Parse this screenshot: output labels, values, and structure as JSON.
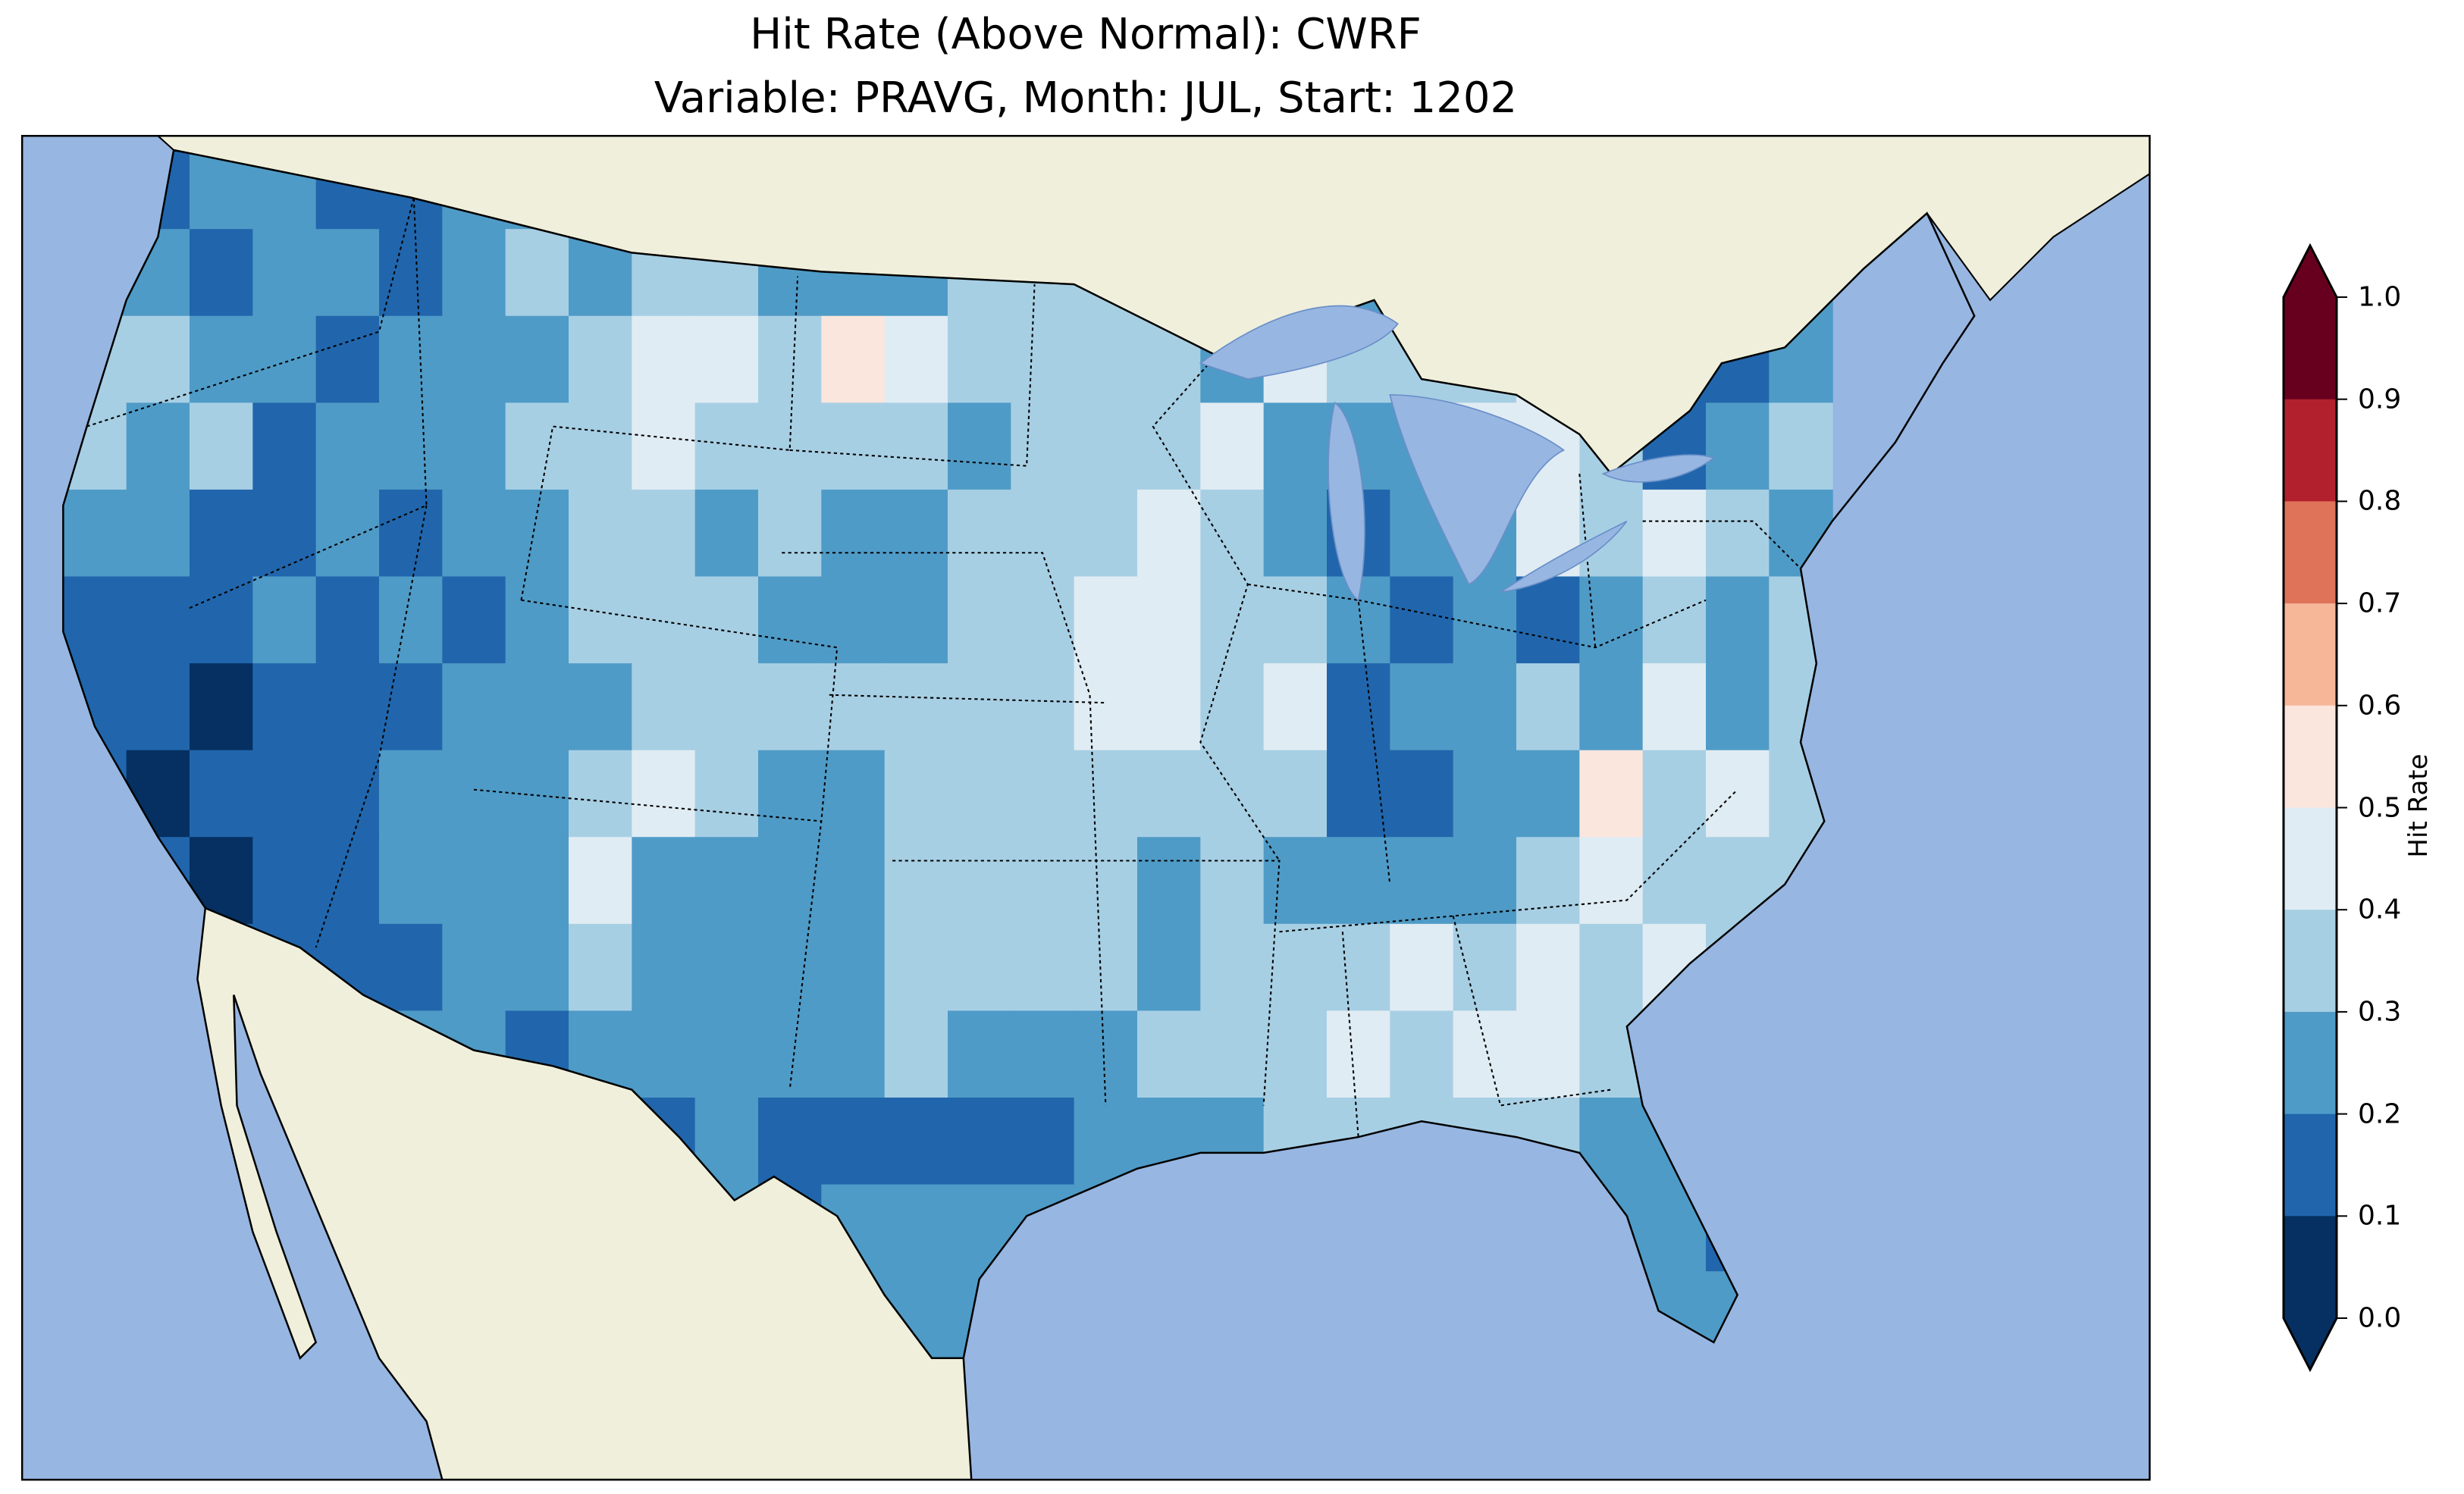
{
  "chart_data": {
    "type": "heatmap",
    "title": "Hit Rate (Above Normal): CWRF",
    "subtitle": "Variable: PRAVG, Month: JUL, Start: 1202",
    "colorbar": {
      "label": "Hit Rate",
      "levels": [
        0.0,
        0.1,
        0.2,
        0.3,
        0.4,
        0.5,
        0.6,
        0.7,
        0.8,
        0.9,
        1.0
      ],
      "tick_labels": [
        "0.0",
        "0.1",
        "0.2",
        "0.3",
        "0.4",
        "0.5",
        "0.6",
        "0.7",
        "0.8",
        "0.9",
        "1.0"
      ],
      "colors": [
        "#053061",
        "#2166ac",
        "#4f9bc7",
        "#a7cfe4",
        "#e0ecf3",
        "#fae6dd",
        "#f6b799",
        "#de735a",
        "#b2202d",
        "#67001f"
      ],
      "extend": "both"
    },
    "grid_note_bins": "each digit = bin index into colorbar.colors",
    "grid_rows": [
      "1122112232212223322212222222",
      "2212212323322233332223322122",
      "3322122234435433332433341112",
      "3231222334333323334222443123",
      "2211212233232233343212243432",
      "1112121233322233443321212323",
      "1101112223333333443412232423",
      "1011122234322333333311225343",
      "1101122242222333323222234333",
      "2211112232222333323334343432",
      "2211222122222322233343443333",
      "2222222221211111222333332222",
      "2222222222212222222222222212",
      "2222222222212222222222222221"
    ],
    "colors": {
      "ocean": "#97b6e1",
      "land": "#efefdb",
      "lakes": "#97b6e1"
    }
  }
}
